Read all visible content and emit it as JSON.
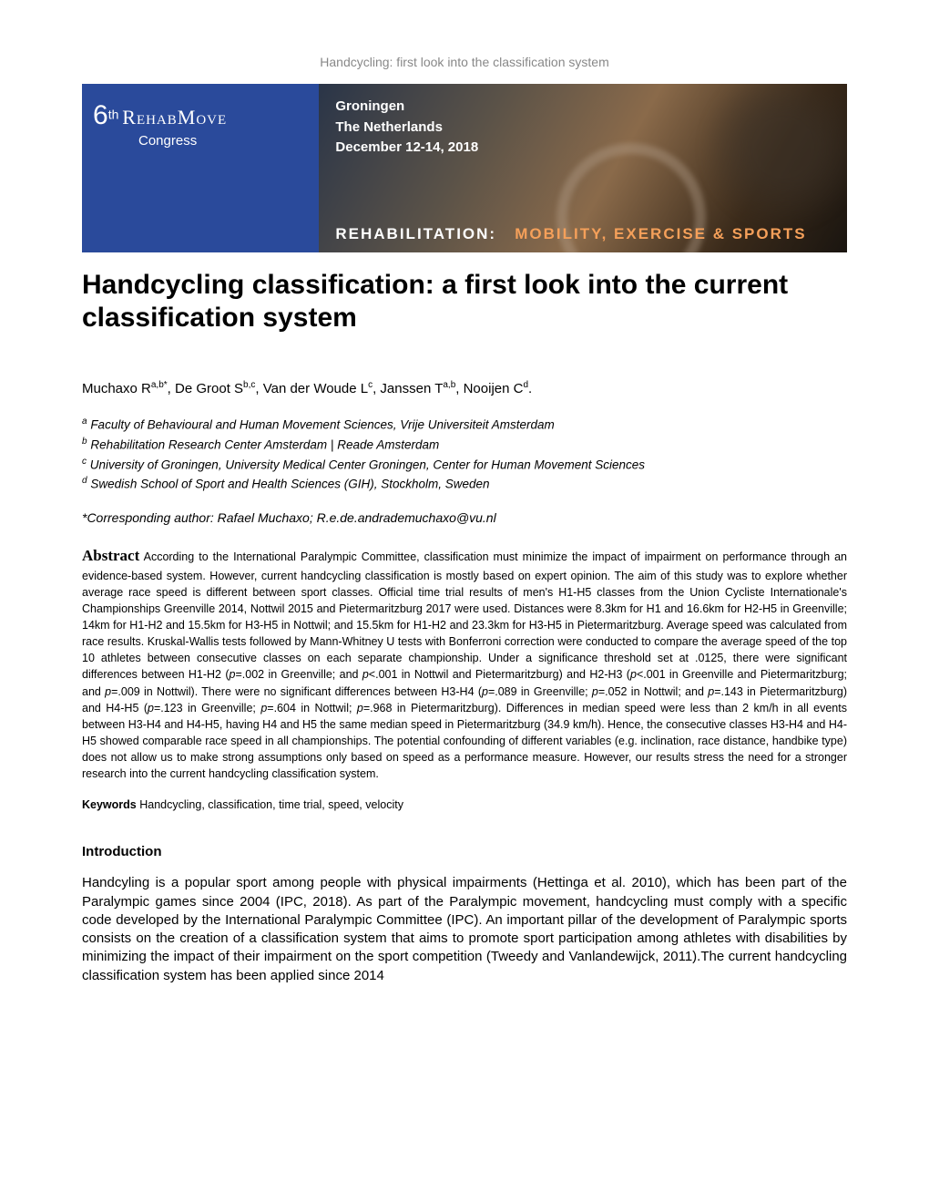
{
  "running_header": "Handcycling: first look into the classification system",
  "banner": {
    "left_bg": "#2a4a9b",
    "congress_name_html": "6<span class='th'>th</span> <span class='rehab'>RehabMove</span>",
    "congress_word": "Congress",
    "location_line1": "Groningen",
    "location_line2": "The Netherlands",
    "dates": "December 12-14, 2018",
    "tagline_left": "REHABILITATION:",
    "tagline_right": "MOBILITY, EXERCISE & SPORTS"
  },
  "title": "Handcycling classification: a first look into the current classification system",
  "authors_html": "Muchaxo R<sup>a,b*</sup>, De Groot S<sup>b,c</sup>, Van der Woude L<sup>c</sup>, Janssen T<sup>a,b</sup>, Nooijen C<sup>d</sup>.",
  "affiliations": [
    {
      "sup": "a",
      "text": "Faculty of Behavioural and Human Movement Sciences, Vrije Universiteit Amsterdam"
    },
    {
      "sup": "b",
      "text": "Rehabilitation Research Center Amsterdam | Reade Amsterdam"
    },
    {
      "sup": "c",
      "text": "University of Groningen, University Medical Center Groningen, Center for Human Movement Sciences"
    },
    {
      "sup": "d",
      "text": "Swedish School of Sport and Health Sciences (GIH), Stockholm, Sweden"
    }
  ],
  "corresponding": "*Corresponding author: Rafael Muchaxo; R.e.de.andrademuchaxo@vu.nl",
  "abstract_label": "Abstract",
  "abstract_html": "According to the International Paralympic Committee, classification must minimize the impact of impairment on performance through an evidence-based system. However, current handcycling classification is mostly based on expert opinion. The aim of this study was to explore whether average race speed is different between sport classes. Official time trial results of men's H1-H5 classes from the Union Cycliste Internationale's Championships Greenville 2014, Nottwil 2015 and Pietermaritzburg 2017 were used. Distances were 8.3km for H1 and 16.6km for H2-H5 in Greenville; 14km for H1-H2 and 15.5km for H3-H5 in Nottwil; and 15.5km for H1-H2 and 23.3km for H3-H5 in Pietermaritzburg. Average speed was calculated from race results. Kruskal-Wallis tests followed by Mann-Whitney U tests with Bonferroni correction were conducted to compare the average speed of the top 10 athletes between consecutive classes on each separate championship. Under a significance threshold set at .0125, there were significant differences between H1-H2 (<em>p</em>=.002 in Greenville; and <em>p</em>&lt;.001 in Nottwil and Pietermaritzburg) and H2-H3 (<em>p</em>&lt;.001 in Greenville and Pietermaritzburg; and <em>p</em>=.009 in Nottwil). There were no significant differences between H3-H4 (<em>p</em>=.089 in Greenville; <em>p</em>=.052 in Nottwil; and <em>p</em>=.143 in Pietermaritzburg) and H4-H5 (<em>p</em>=.123 in Greenville; <em>p</em>=.604 in Nottwil; <em>p</em>=.968 in Pietermaritzburg). Differences in median speed were less than 2 km/h in all events between H3-H4 and H4-H5, having H4 and H5 the same median speed in Pietermaritzburg (34.9 km/h). Hence, the consecutive classes H3-H4 and H4-H5 showed comparable race speed in all championships. The potential confounding of different variables (e.g. inclination, race distance, handbike type) does not allow us to make strong assumptions only based on speed as a performance measure. However, our results stress the need for a stronger research into the current handcycling classification system.",
  "keywords_label": "Keywords",
  "keywords_text": "Handcycling, classification, time trial,  speed, velocity",
  "intro_heading": "Introduction",
  "intro_body": "Handcyling is a popular sport among people with physical impairments (Hettinga et al. 2010), which has been part of the Paralympic games since 2004 (IPC, 2018). As part of the Paralympic movement, handcycling must comply with a specific code developed by the International Paralympic Committee (IPC). An important pillar of the development of Paralympic sports consists on the creation of a classification system that aims to promote sport participation among athletes with disabilities by minimizing the impact of their impairment on the sport competition (Tweedy and Vanlandewijck, 2011).The current handcycling classification system has been applied since 2014"
}
